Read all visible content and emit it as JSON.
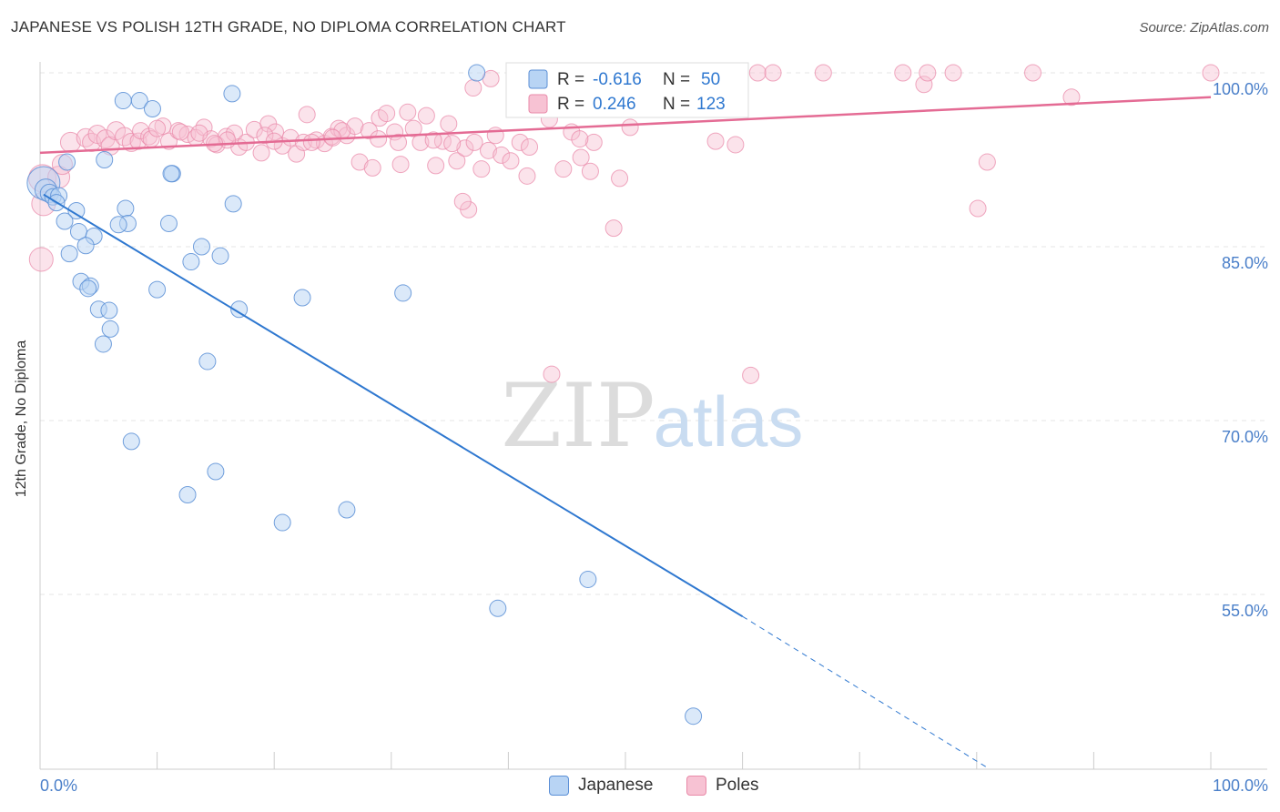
{
  "header": {
    "title": "JAPANESE VS POLISH 12TH GRADE, NO DIPLOMA CORRELATION CHART",
    "source": "Source: ZipAtlas.com"
  },
  "watermark": {
    "zip": "ZIP",
    "atlas": "atlas"
  },
  "legend_top": {
    "japanese": {
      "r_label": "R =",
      "r_value": "-0.616",
      "n_label": "N =",
      "n_value": "50"
    },
    "poles": {
      "r_label": "R =",
      "r_value": "0.246",
      "n_label": "N =",
      "n_value": "123"
    }
  },
  "colors": {
    "japanese_fill": "#b8d4f4",
    "japanese_stroke": "#5b8fd6",
    "japanese_line": "#2f78d0",
    "poles_fill": "#f7c2d3",
    "poles_stroke": "#e98aa9",
    "poles_line": "#e46b94",
    "tick_label": "#4a7fc9",
    "grid": "#e6e6e6"
  },
  "chart_data": {
    "type": "scatter",
    "title": "JAPANESE VS POLISH 12TH GRADE, NO DIPLOMA CORRELATION CHART",
    "ylabel": "12th Grade, No Diploma",
    "xlabel": "",
    "xlim": [
      0,
      100
    ],
    "ylim": [
      40,
      101.5
    ],
    "x_tick_labels": [
      {
        "value": 0,
        "label": "0.0%"
      },
      {
        "value": 100,
        "label": "100.0%"
      }
    ],
    "y_tick_labels": [
      {
        "value": 100,
        "label": "100.0%"
      },
      {
        "value": 85,
        "label": "85.0%"
      },
      {
        "value": 70,
        "label": "70.0%"
      },
      {
        "value": 55,
        "label": "55.0%"
      }
    ],
    "grid": true,
    "legend": "top-center, bottom-center",
    "series": [
      {
        "name": "Japanese",
        "r": -0.616,
        "n": 50,
        "trend": {
          "x0": 0.3,
          "y0": 89.5,
          "x1": 60,
          "y1": 53.1,
          "dash_to_x": 81,
          "dash_to_y": 40
        },
        "points": [
          [
            0.3,
            90.5,
            18
          ],
          [
            0.5,
            89.9,
            12
          ],
          [
            0.8,
            89.6,
            10
          ],
          [
            1.1,
            89.3,
            9
          ],
          [
            1.6,
            89.4,
            9
          ],
          [
            1.4,
            88.8,
            9
          ],
          [
            2.3,
            92.3,
            9
          ],
          [
            3.1,
            88.1,
            9
          ],
          [
            2.1,
            87.2,
            9
          ],
          [
            3.3,
            86.3,
            9
          ],
          [
            4.6,
            85.9,
            9
          ],
          [
            3.9,
            85.1,
            9
          ],
          [
            2.5,
            84.4,
            9
          ],
          [
            5.5,
            92.5,
            9
          ],
          [
            7.1,
            97.6,
            9
          ],
          [
            8.5,
            97.6,
            9
          ],
          [
            9.6,
            96.9,
            9
          ],
          [
            11.3,
            91.3,
            9
          ],
          [
            11.2,
            91.3,
            9
          ],
          [
            16.4,
            98.2,
            9
          ],
          [
            7.3,
            88.3,
            9
          ],
          [
            7.5,
            87.0,
            9
          ],
          [
            6.7,
            86.9,
            9
          ],
          [
            11.0,
            87.0,
            9
          ],
          [
            16.5,
            88.7,
            9
          ],
          [
            13.8,
            85.0,
            9
          ],
          [
            15.4,
            84.2,
            9
          ],
          [
            12.9,
            83.7,
            9
          ],
          [
            3.5,
            82.0,
            9
          ],
          [
            4.3,
            81.6,
            9
          ],
          [
            4.1,
            81.4,
            9
          ],
          [
            10.0,
            81.3,
            9
          ],
          [
            5.0,
            79.6,
            9
          ],
          [
            5.9,
            79.5,
            9
          ],
          [
            17.0,
            79.6,
            9
          ],
          [
            22.4,
            80.6,
            9
          ],
          [
            31.0,
            81.0,
            9
          ],
          [
            6.0,
            77.9,
            9
          ],
          [
            5.4,
            76.6,
            9
          ],
          [
            14.3,
            75.1,
            9
          ],
          [
            7.8,
            68.2,
            9
          ],
          [
            15.0,
            65.6,
            9
          ],
          [
            12.6,
            63.6,
            9
          ],
          [
            26.2,
            62.3,
            9
          ],
          [
            20.7,
            61.2,
            9
          ],
          [
            37.3,
            100.0,
            9
          ],
          [
            46.8,
            56.3,
            9
          ],
          [
            39.1,
            53.8,
            9
          ],
          [
            55.8,
            44.5,
            9
          ],
          [
            45.0,
            100.0,
            9
          ]
        ]
      },
      {
        "name": "Poles",
        "r": 0.246,
        "n": 123,
        "trend": {
          "x0": 0,
          "y0": 93.1,
          "x1": 100,
          "y1": 97.9
        },
        "points": [
          [
            0.2,
            90.9,
            15
          ],
          [
            0.3,
            88.7,
            13
          ],
          [
            0.1,
            83.9,
            13
          ],
          [
            1.6,
            91.0,
            12
          ],
          [
            1.9,
            92.1,
            11
          ],
          [
            2.6,
            94.0,
            11
          ],
          [
            3.9,
            94.4,
            10
          ],
          [
            4.4,
            94.0,
            10
          ],
          [
            4.9,
            94.7,
            10
          ],
          [
            5.6,
            94.3,
            10
          ],
          [
            6.0,
            93.7,
            10
          ],
          [
            6.5,
            95.0,
            10
          ],
          [
            7.2,
            94.5,
            10
          ],
          [
            7.8,
            94.0,
            10
          ],
          [
            8.4,
            94.1,
            9
          ],
          [
            8.6,
            95.0,
            9
          ],
          [
            9.3,
            94.5,
            9
          ],
          [
            10.5,
            95.4,
            9
          ],
          [
            11.0,
            94.1,
            9
          ],
          [
            11.8,
            95.0,
            9
          ],
          [
            12.6,
            94.7,
            9
          ],
          [
            13.3,
            94.4,
            9
          ],
          [
            14.0,
            95.3,
            9
          ],
          [
            14.6,
            94.3,
            9
          ],
          [
            15.1,
            93.8,
            9
          ],
          [
            15.9,
            94.5,
            9
          ],
          [
            16.6,
            94.8,
            9
          ],
          [
            17.0,
            93.6,
            9
          ],
          [
            17.6,
            94.0,
            9
          ],
          [
            18.3,
            95.1,
            9
          ],
          [
            18.9,
            93.1,
            9
          ],
          [
            19.5,
            95.6,
            9
          ],
          [
            20.1,
            94.9,
            9
          ],
          [
            20.7,
            93.7,
            9
          ],
          [
            21.4,
            94.4,
            9
          ],
          [
            21.9,
            93.0,
            9
          ],
          [
            22.5,
            94.0,
            9
          ],
          [
            22.8,
            96.4,
            9
          ],
          [
            23.6,
            94.2,
            9
          ],
          [
            24.3,
            93.9,
            9
          ],
          [
            24.9,
            94.5,
            9
          ],
          [
            25.5,
            95.2,
            9
          ],
          [
            26.2,
            94.6,
            9
          ],
          [
            26.9,
            95.4,
            9
          ],
          [
            27.3,
            92.3,
            9
          ],
          [
            28.1,
            95.0,
            9
          ],
          [
            28.4,
            91.8,
            9
          ],
          [
            29.0,
            96.1,
            9
          ],
          [
            29.6,
            96.5,
            9
          ],
          [
            30.3,
            94.9,
            9
          ],
          [
            30.8,
            92.1,
            9
          ],
          [
            31.4,
            96.6,
            9
          ],
          [
            31.9,
            95.2,
            9
          ],
          [
            32.5,
            94.0,
            9
          ],
          [
            33.0,
            96.3,
            9
          ],
          [
            33.8,
            92.0,
            9
          ],
          [
            34.4,
            94.1,
            9
          ],
          [
            34.9,
            95.6,
            9
          ],
          [
            35.6,
            92.4,
            9
          ],
          [
            36.3,
            93.5,
            9
          ],
          [
            37.1,
            94.0,
            9
          ],
          [
            37.7,
            91.7,
            9
          ],
          [
            38.3,
            93.3,
            9
          ],
          [
            38.9,
            94.6,
            9
          ],
          [
            39.4,
            92.9,
            9
          ],
          [
            40.2,
            92.4,
            9
          ],
          [
            41.0,
            94.0,
            9
          ],
          [
            41.6,
            91.1,
            9
          ],
          [
            42.4,
            99.9,
            9
          ],
          [
            43.5,
            96.0,
            9
          ],
          [
            44.7,
            91.7,
            9
          ],
          [
            45.4,
            94.9,
            9
          ],
          [
            46.2,
            92.7,
            9
          ],
          [
            47.0,
            91.5,
            9
          ],
          [
            48.6,
            100.0,
            9
          ],
          [
            49.5,
            90.9,
            9
          ],
          [
            50.4,
            95.3,
            9
          ],
          [
            52.0,
            100.0,
            9
          ],
          [
            53.5,
            99.7,
            9
          ],
          [
            54.2,
            100.0,
            9
          ],
          [
            55.3,
            99.9,
            9
          ],
          [
            57.7,
            94.1,
            9
          ],
          [
            59.4,
            93.8,
            9
          ],
          [
            61.3,
            100.0,
            9
          ],
          [
            62.6,
            100.0,
            9
          ],
          [
            66.9,
            100.0,
            9
          ],
          [
            73.7,
            100.0,
            9
          ],
          [
            75.5,
            99.0,
            9
          ],
          [
            75.8,
            100.0,
            9
          ],
          [
            78.0,
            100.0,
            9
          ],
          [
            80.1,
            88.3,
            9
          ],
          [
            80.9,
            92.3,
            9
          ],
          [
            84.8,
            100.0,
            9
          ],
          [
            88.1,
            97.9,
            9
          ],
          [
            100.0,
            100.0,
            9
          ],
          [
            37.0,
            98.7,
            9
          ],
          [
            38.5,
            99.5,
            9
          ],
          [
            40.7,
            100.0,
            9
          ],
          [
            43.0,
            98.5,
            9
          ],
          [
            36.6,
            88.2,
            9
          ],
          [
            36.1,
            88.9,
            9
          ],
          [
            43.7,
            74.0,
            9
          ],
          [
            60.7,
            73.9,
            9
          ],
          [
            49.0,
            86.6,
            9
          ],
          [
            9.5,
            94.3,
            9
          ],
          [
            12.0,
            94.9,
            9
          ],
          [
            13.6,
            94.8,
            9
          ],
          [
            16.0,
            94.2,
            9
          ],
          [
            19.2,
            94.6,
            9
          ],
          [
            23.2,
            94.0,
            9
          ],
          [
            25.8,
            95.0,
            9
          ],
          [
            28.9,
            94.3,
            9
          ],
          [
            33.6,
            94.2,
            9
          ],
          [
            44.2,
            96.9,
            9
          ],
          [
            47.3,
            94.0,
            9
          ],
          [
            10.0,
            95.2,
            9
          ],
          [
            14.9,
            93.9,
            9
          ],
          [
            20.0,
            94.1,
            9
          ],
          [
            25.0,
            94.4,
            9
          ],
          [
            30.6,
            94.0,
            9
          ],
          [
            35.2,
            93.9,
            9
          ],
          [
            41.8,
            93.6,
            9
          ],
          [
            46.1,
            94.3,
            9
          ]
        ]
      }
    ]
  },
  "legend_bottom": {
    "japanese": "Japanese",
    "poles": "Poles"
  }
}
